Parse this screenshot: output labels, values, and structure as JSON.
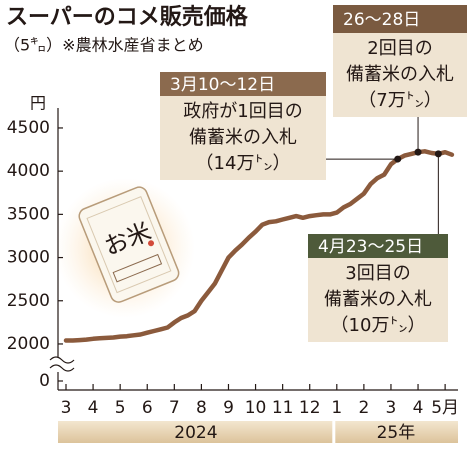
{
  "chart_data": {
    "type": "line",
    "title": "スーパーのコメ販売価格",
    "subtitle": "（5㌔）※農林水産省まとめ",
    "y_unit": "円",
    "illustration_text": "お米",
    "categories": [
      "3",
      null,
      null,
      null,
      "4",
      null,
      null,
      null,
      "5",
      null,
      null,
      null,
      "6",
      null,
      null,
      null,
      "7",
      null,
      null,
      null,
      "8",
      null,
      null,
      null,
      "9",
      null,
      null,
      null,
      "10",
      null,
      null,
      null,
      "11",
      null,
      null,
      null,
      "12",
      null,
      null,
      null,
      "1",
      null,
      null,
      null,
      "2",
      null,
      null,
      null,
      "3",
      null,
      null,
      null,
      "4",
      null,
      null,
      null,
      "5月",
      null
    ],
    "x_groups": [
      "2024",
      "25年"
    ],
    "series": [
      {
        "name": "販売価格",
        "color": "#8b5a3c",
        "values": [
          2040,
          2040,
          2045,
          2050,
          2060,
          2065,
          2070,
          2075,
          2085,
          2090,
          2100,
          2110,
          2130,
          2150,
          2170,
          2190,
          2250,
          2300,
          2330,
          2380,
          2500,
          2600,
          2700,
          2850,
          3000,
          3080,
          3150,
          3230,
          3300,
          3380,
          3410,
          3420,
          3440,
          3460,
          3480,
          3460,
          3480,
          3490,
          3500,
          3500,
          3520,
          3580,
          3620,
          3680,
          3740,
          3850,
          3920,
          3960,
          4080,
          4140,
          4180,
          4200,
          4220,
          4230,
          4210,
          4200,
          4220,
          4190
        ]
      }
    ],
    "ylim": [
      0,
      4600
    ],
    "axis_break": [
      0,
      1900
    ],
    "yticks": [
      0,
      2000,
      2500,
      3000,
      3500,
      4000,
      4500
    ],
    "grid": false,
    "annotations": [
      {
        "header": "3月10～12日",
        "lines": [
          "政府が1回目の",
          "備蓄米の入札",
          "（14万㌧）"
        ],
        "header_color": "#8b6a4e"
      },
      {
        "header": "26～28日",
        "lines": [
          "2回目の",
          "備蓄米の入札",
          "（7万㌧）"
        ],
        "header_color": "#7a5a40"
      },
      {
        "header": "4月23～25日",
        "lines": [
          "3回目の",
          "備蓄米の入札",
          "（10万㌧）"
        ],
        "header_color": "#4e5a3a"
      }
    ]
  }
}
